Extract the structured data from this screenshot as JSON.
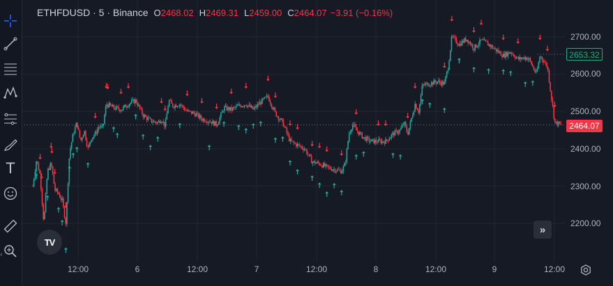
{
  "legend": {
    "symbol": "ETHFDUSD · 5 · Binance",
    "o_label": "O",
    "o_value": "2468.02",
    "h_label": "H",
    "h_value": "2469.31",
    "l_label": "L",
    "l_value": "2459.00",
    "c_label": "C",
    "c_value": "2464.07",
    "change": "−3.91 (−0.16%)"
  },
  "price_axis": {
    "ticks": [
      "2700.00",
      "2600.00",
      "2500.00",
      "2400.00",
      "2300.00",
      "2200.00"
    ],
    "last_price": "2653.32",
    "current_price": "2464.07"
  },
  "time_axis": {
    "ticks": [
      "12:00",
      "6",
      "12:00",
      "7",
      "12:00",
      "8",
      "12:00",
      "9",
      "12:00"
    ]
  },
  "toolbar": {
    "tools": [
      "crosshair-icon",
      "trendline-icon",
      "fib-icon",
      "pattern-icon",
      "prediction-icon",
      "brush-icon",
      "text-icon",
      "emoji-icon",
      "ruler-icon",
      "zoom-icon"
    ],
    "text_tool": "T"
  },
  "logo": "TV",
  "chart_data": {
    "type": "candlestick",
    "symbol": "ETHFDUSD",
    "interval": "5",
    "exchange": "Binance",
    "ylim": [
      2130,
      2760
    ],
    "y_ticks": [
      2200,
      2300,
      2400,
      2500,
      2600,
      2700
    ],
    "x_ticks": [
      "12:00",
      "6",
      "12:00",
      "7",
      "12:00",
      "8",
      "12:00",
      "9",
      "12:00"
    ],
    "current_price": 2464.07,
    "last_marked_price": 2653.32,
    "grid": true,
    "colors": {
      "up": "#26a69a",
      "down": "#f23645",
      "background": "#161a25",
      "grid": "#232631"
    },
    "path": [
      [
        0,
        2300
      ],
      [
        5,
        2370
      ],
      [
        10,
        2330
      ],
      [
        15,
        2200
      ],
      [
        20,
        2340
      ],
      [
        25,
        2360
      ],
      [
        30,
        2290
      ],
      [
        35,
        2280
      ],
      [
        40,
        2260
      ],
      [
        45,
        2200
      ],
      [
        50,
        2390
      ],
      [
        55,
        2440
      ],
      [
        60,
        2470
      ],
      [
        65,
        2420
      ],
      [
        70,
        2450
      ],
      [
        75,
        2400
      ],
      [
        80,
        2430
      ],
      [
        85,
        2440
      ],
      [
        90,
        2460
      ],
      [
        95,
        2455
      ],
      [
        100,
        2520
      ],
      [
        110,
        2510
      ],
      [
        120,
        2505
      ],
      [
        130,
        2520
      ],
      [
        140,
        2530
      ],
      [
        150,
        2490
      ],
      [
        160,
        2475
      ],
      [
        170,
        2470
      ],
      [
        175,
        2480
      ],
      [
        180,
        2460
      ],
      [
        185,
        2530
      ],
      [
        190,
        2515
      ],
      [
        200,
        2520
      ],
      [
        210,
        2500
      ],
      [
        220,
        2495
      ],
      [
        230,
        2480
      ],
      [
        240,
        2475
      ],
      [
        250,
        2465
      ],
      [
        255,
        2485
      ],
      [
        260,
        2510
      ],
      [
        270,
        2505
      ],
      [
        280,
        2515
      ],
      [
        290,
        2520
      ],
      [
        300,
        2505
      ],
      [
        310,
        2525
      ],
      [
        320,
        2540
      ],
      [
        330,
        2495
      ],
      [
        340,
        2470
      ],
      [
        350,
        2420
      ],
      [
        360,
        2410
      ],
      [
        370,
        2400
      ],
      [
        380,
        2365
      ],
      [
        390,
        2360
      ],
      [
        400,
        2350
      ],
      [
        410,
        2345
      ],
      [
        420,
        2340
      ],
      [
        425,
        2360
      ],
      [
        430,
        2440
      ],
      [
        435,
        2465
      ],
      [
        440,
        2450
      ],
      [
        450,
        2430
      ],
      [
        460,
        2420
      ],
      [
        470,
        2420
      ],
      [
        480,
        2420
      ],
      [
        490,
        2440
      ],
      [
        500,
        2450
      ],
      [
        505,
        2470
      ],
      [
        510,
        2440
      ],
      [
        515,
        2480
      ],
      [
        520,
        2520
      ],
      [
        525,
        2500
      ],
      [
        530,
        2570
      ],
      [
        540,
        2575
      ],
      [
        550,
        2580
      ],
      [
        560,
        2575
      ],
      [
        565,
        2620
      ],
      [
        570,
        2700
      ],
      [
        580,
        2680
      ],
      [
        590,
        2695
      ],
      [
        600,
        2670
      ],
      [
        610,
        2690
      ],
      [
        620,
        2680
      ],
      [
        630,
        2665
      ],
      [
        640,
        2650
      ],
      [
        650,
        2660
      ],
      [
        660,
        2640
      ],
      [
        670,
        2645
      ],
      [
        675,
        2640
      ],
      [
        680,
        2620
      ],
      [
        685,
        2600
      ],
      [
        690,
        2650
      ],
      [
        700,
        2620
      ],
      [
        710,
        2470
      ],
      [
        720,
        2464
      ]
    ],
    "signals_down_x": [
      10,
      12,
      25,
      26,
      30,
      45,
      85,
      100,
      102,
      120,
      130,
      175,
      180,
      210,
      230,
      250,
      270,
      290,
      320,
      330,
      350,
      360,
      380,
      390,
      400,
      420,
      440,
      470,
      480,
      510,
      520,
      560,
      570,
      600,
      610,
      640,
      660,
      690,
      700,
      710
    ],
    "signals_up_x": [
      5,
      15,
      20,
      35,
      40,
      45,
      50,
      55,
      60,
      75,
      110,
      115,
      140,
      150,
      160,
      170,
      200,
      240,
      260,
      280,
      290,
      300,
      310,
      330,
      340,
      350,
      360,
      380,
      390,
      400,
      410,
      420,
      440,
      450,
      490,
      500,
      530,
      540,
      560,
      580,
      600,
      620,
      640,
      650,
      670,
      680
    ]
  }
}
